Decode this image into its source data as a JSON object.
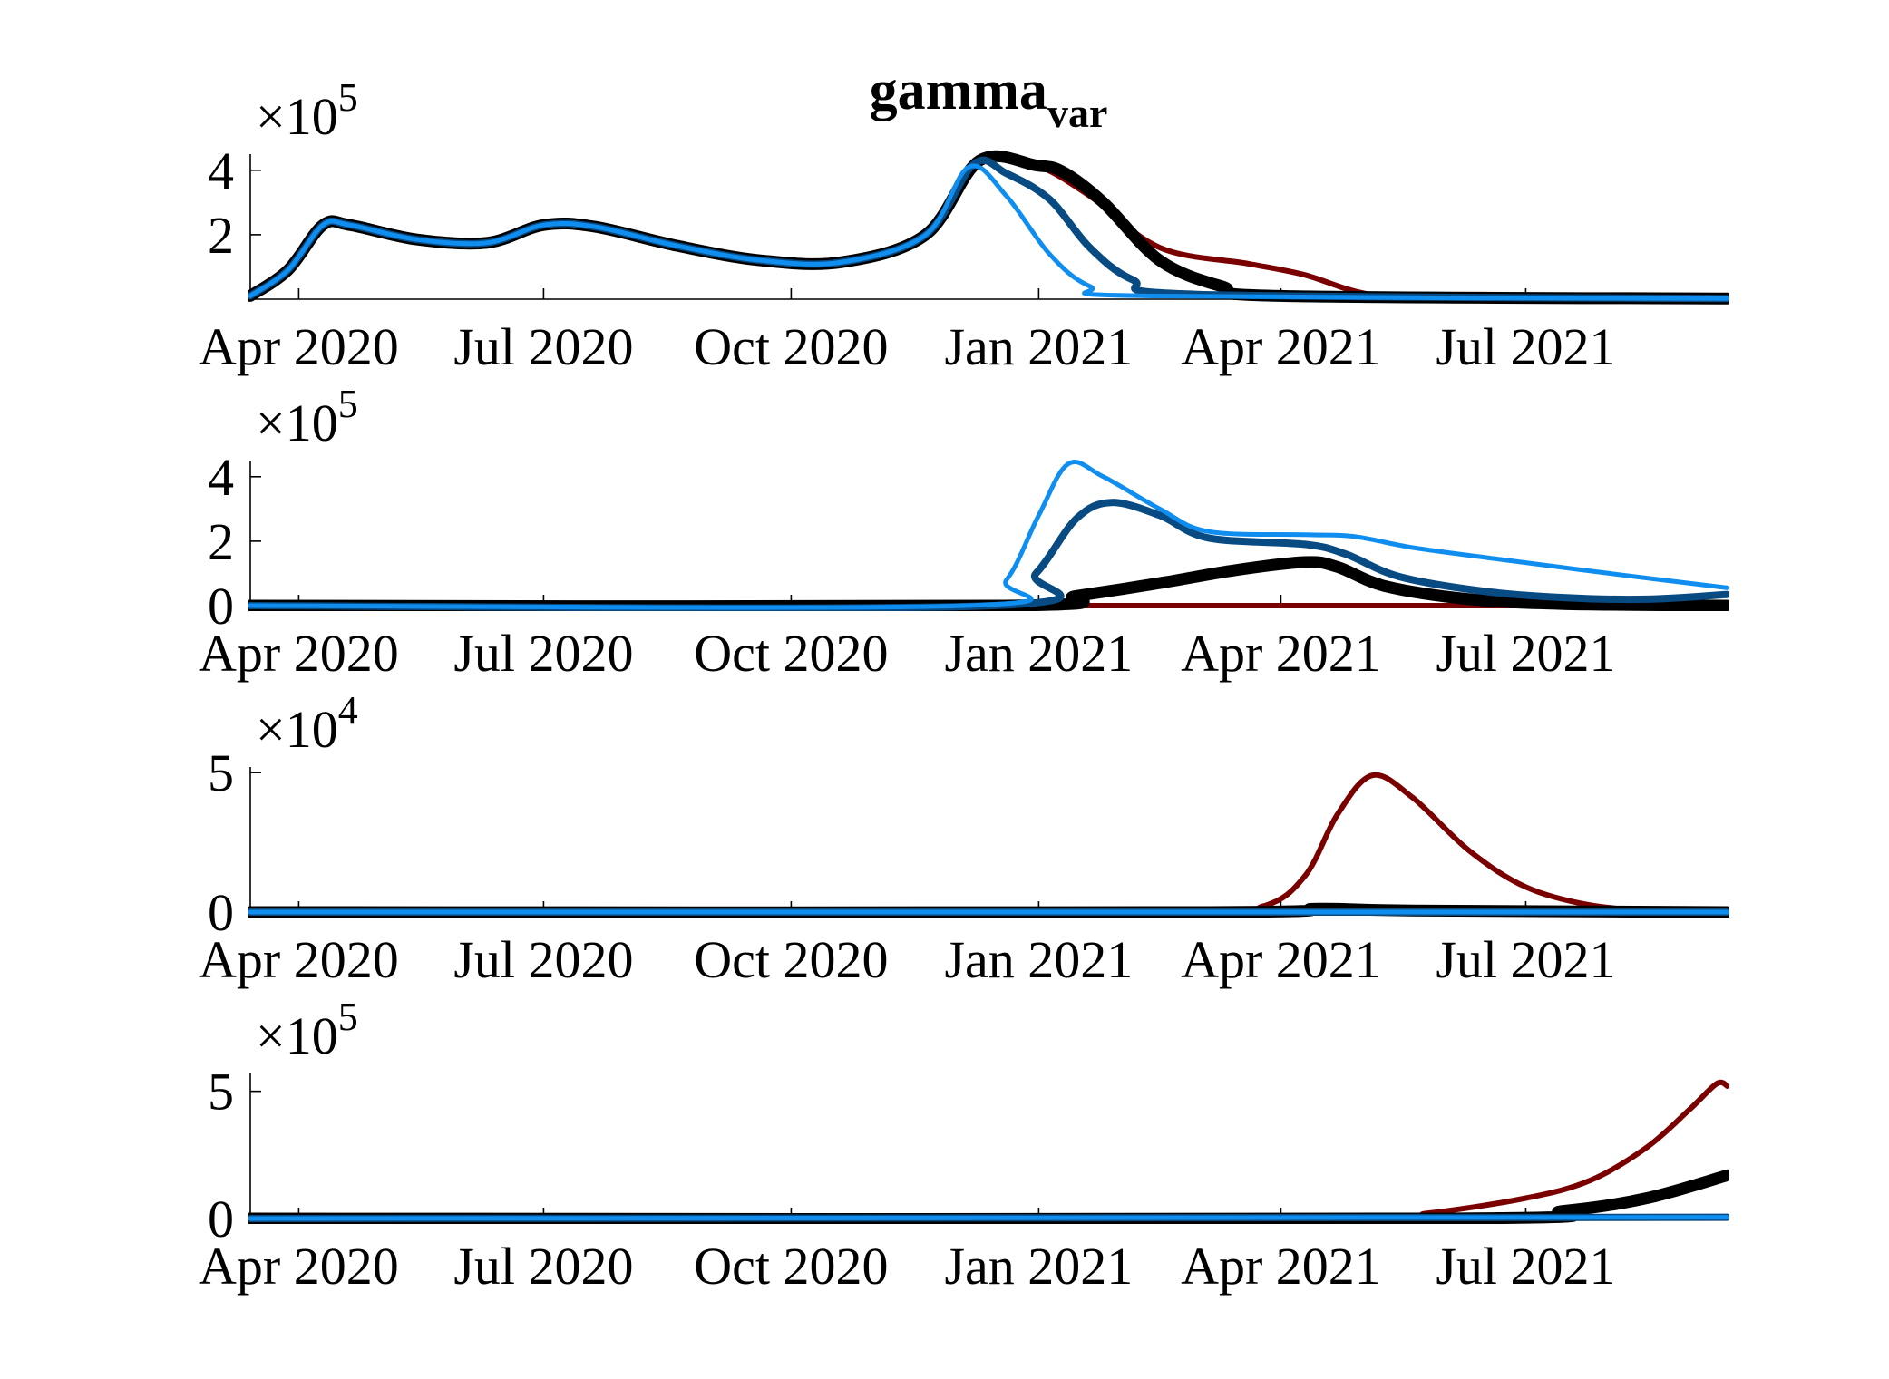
{
  "figure": {
    "title_main": "gamma",
    "title_sub": "var"
  },
  "x_ticks": [
    "Apr 2020",
    "Jul 2020",
    "Oct 2020",
    "Jan 2021",
    "Apr 2021",
    "Jul 2021"
  ],
  "chart_data": [
    {
      "type": "line",
      "panel": 1,
      "title": "gamma var",
      "xlabel": "",
      "ylabel": "",
      "x_ticks": [
        "2020-04-01",
        "2020-07-01",
        "2020-10-01",
        "2021-01-01",
        "2021-04-01",
        "2021-07-01"
      ],
      "xlim": [
        "2020-03-14",
        "2021-09-14"
      ],
      "ylim": [
        0,
        4.5
      ],
      "y_ticks": [
        "2",
        "4"
      ],
      "y_tick_values": [
        2,
        4
      ],
      "exponent_base": "×10",
      "exponent": "5",
      "grid": false,
      "series": [
        {
          "color": "#7a0000",
          "width": 6,
          "points": [
            [
              "2020-03-14",
              0.1
            ],
            [
              "2020-03-28",
              0.9
            ],
            [
              "2020-04-10",
              2.3
            ],
            [
              "2020-04-20",
              2.3
            ],
            [
              "2020-05-15",
              1.85
            ],
            [
              "2020-06-10",
              1.75
            ],
            [
              "2020-07-01",
              2.3
            ],
            [
              "2020-07-20",
              2.25
            ],
            [
              "2020-08-20",
              1.65
            ],
            [
              "2020-09-20",
              1.2
            ],
            [
              "2020-10-20",
              1.15
            ],
            [
              "2020-11-20",
              2.0
            ],
            [
              "2020-12-10",
              4.3
            ],
            [
              "2020-12-31",
              4.15
            ],
            [
              "2021-01-20",
              3.2
            ],
            [
              "2021-02-15",
              1.6
            ],
            [
              "2021-03-20",
              1.1
            ],
            [
              "2021-04-10",
              0.75
            ],
            [
              "2021-05-01",
              0.2
            ],
            [
              "2021-05-25",
              0.04
            ],
            [
              "2021-09-14",
              0.02
            ]
          ]
        },
        {
          "color": "#000000",
          "width": 13,
          "points": [
            [
              "2020-03-14",
              0.1
            ],
            [
              "2020-03-28",
              0.9
            ],
            [
              "2020-04-10",
              2.3
            ],
            [
              "2020-04-20",
              2.3
            ],
            [
              "2020-05-15",
              1.85
            ],
            [
              "2020-06-10",
              1.75
            ],
            [
              "2020-07-01",
              2.3
            ],
            [
              "2020-07-20",
              2.25
            ],
            [
              "2020-08-20",
              1.65
            ],
            [
              "2020-09-20",
              1.2
            ],
            [
              "2020-10-20",
              1.15
            ],
            [
              "2020-11-20",
              2.0
            ],
            [
              "2020-12-10",
              4.3
            ],
            [
              "2020-12-31",
              4.15
            ],
            [
              "2021-01-10",
              3.95
            ],
            [
              "2021-01-25",
              3.0
            ],
            [
              "2021-02-15",
              1.2
            ],
            [
              "2021-03-10",
              0.4
            ],
            [
              "2021-04-01",
              0.1
            ],
            [
              "2021-09-14",
              0.02
            ]
          ]
        },
        {
          "color": "#084a82",
          "width": 8,
          "points": [
            [
              "2020-03-14",
              0.1
            ],
            [
              "2020-03-28",
              0.9
            ],
            [
              "2020-04-10",
              2.3
            ],
            [
              "2020-04-20",
              2.3
            ],
            [
              "2020-05-15",
              1.85
            ],
            [
              "2020-06-10",
              1.75
            ],
            [
              "2020-07-01",
              2.3
            ],
            [
              "2020-07-20",
              2.25
            ],
            [
              "2020-08-20",
              1.65
            ],
            [
              "2020-09-20",
              1.2
            ],
            [
              "2020-10-20",
              1.15
            ],
            [
              "2020-11-20",
              2.0
            ],
            [
              "2020-12-08",
              4.2
            ],
            [
              "2020-12-20",
              3.9
            ],
            [
              "2021-01-05",
              3.1
            ],
            [
              "2021-01-20",
              1.6
            ],
            [
              "2021-02-05",
              0.6
            ],
            [
              "2021-03-01",
              0.15
            ],
            [
              "2021-09-14",
              0.02
            ]
          ]
        },
        {
          "color": "#0f8ef0",
          "width": 5,
          "points": [
            [
              "2020-03-14",
              0.1
            ],
            [
              "2020-03-28",
              0.9
            ],
            [
              "2020-04-10",
              2.3
            ],
            [
              "2020-04-20",
              2.3
            ],
            [
              "2020-05-15",
              1.85
            ],
            [
              "2020-06-10",
              1.75
            ],
            [
              "2020-07-01",
              2.3
            ],
            [
              "2020-07-20",
              2.25
            ],
            [
              "2020-08-20",
              1.65
            ],
            [
              "2020-09-20",
              1.2
            ],
            [
              "2020-10-20",
              1.15
            ],
            [
              "2020-11-20",
              2.0
            ],
            [
              "2020-12-06",
              4.1
            ],
            [
              "2020-12-20",
              3.2
            ],
            [
              "2021-01-05",
              1.4
            ],
            [
              "2021-01-20",
              0.4
            ],
            [
              "2021-02-10",
              0.1
            ],
            [
              "2021-09-14",
              0.02
            ]
          ]
        }
      ]
    },
    {
      "type": "line",
      "panel": 2,
      "xlabel": "",
      "ylabel": "",
      "x_ticks": [
        "2020-04-01",
        "2020-07-01",
        "2020-10-01",
        "2021-01-01",
        "2021-04-01",
        "2021-07-01"
      ],
      "xlim": [
        "2020-03-14",
        "2021-09-14"
      ],
      "ylim": [
        0,
        4.5
      ],
      "y_ticks": [
        "0",
        "2",
        "4"
      ],
      "y_tick_values": [
        0,
        2,
        4
      ],
      "exponent_base": "×10",
      "exponent": "5",
      "grid": false,
      "series": [
        {
          "color": "#7a0000",
          "width": 6,
          "points": [
            [
              "2020-03-14",
              0
            ],
            [
              "2021-09-14",
              0
            ]
          ]
        },
        {
          "color": "#000000",
          "width": 13,
          "points": [
            [
              "2020-03-14",
              0
            ],
            [
              "2020-12-20",
              0
            ],
            [
              "2021-01-15",
              0.3
            ],
            [
              "2021-02-15",
              0.7
            ],
            [
              "2021-03-15",
              1.1
            ],
            [
              "2021-04-10",
              1.35
            ],
            [
              "2021-04-22",
              1.2
            ],
            [
              "2021-05-10",
              0.6
            ],
            [
              "2021-06-10",
              0.2
            ],
            [
              "2021-07-15",
              0.05
            ],
            [
              "2021-09-14",
              0.0
            ]
          ]
        },
        {
          "color": "#084a82",
          "width": 8,
          "points": [
            [
              "2020-03-14",
              0
            ],
            [
              "2020-12-15",
              0
            ],
            [
              "2020-12-31",
              1.0
            ],
            [
              "2021-01-15",
              2.7
            ],
            [
              "2021-01-28",
              3.2
            ],
            [
              "2021-02-15",
              2.8
            ],
            [
              "2021-03-05",
              2.1
            ],
            [
              "2021-04-10",
              1.9
            ],
            [
              "2021-04-25",
              1.6
            ],
            [
              "2021-05-15",
              0.9
            ],
            [
              "2021-06-15",
              0.45
            ],
            [
              "2021-07-15",
              0.25
            ],
            [
              "2021-08-15",
              0.2
            ],
            [
              "2021-09-14",
              0.35
            ]
          ]
        },
        {
          "color": "#0f8ef0",
          "width": 5,
          "points": [
            [
              "2020-03-14",
              0
            ],
            [
              "2020-12-05",
              0
            ],
            [
              "2020-12-20",
              0.8
            ],
            [
              "2021-01-01",
              2.8
            ],
            [
              "2021-01-12",
              4.4
            ],
            [
              "2021-01-25",
              4.0
            ],
            [
              "2021-02-15",
              3.0
            ],
            [
              "2021-03-05",
              2.3
            ],
            [
              "2021-04-10",
              2.2
            ],
            [
              "2021-04-28",
              2.15
            ],
            [
              "2021-05-20",
              1.8
            ],
            [
              "2021-06-20",
              1.45
            ],
            [
              "2021-08-01",
              1.0
            ],
            [
              "2021-09-14",
              0.55
            ]
          ]
        }
      ]
    },
    {
      "type": "line",
      "panel": 3,
      "xlabel": "",
      "ylabel": "",
      "x_ticks": [
        "2020-04-01",
        "2020-07-01",
        "2020-10-01",
        "2021-01-01",
        "2021-04-01",
        "2021-07-01"
      ],
      "xlim": [
        "2020-03-14",
        "2021-09-14"
      ],
      "ylim": [
        0,
        5.2
      ],
      "y_ticks": [
        "0",
        "5"
      ],
      "y_tick_values": [
        0,
        5
      ],
      "exponent_base": "×10",
      "exponent": "4",
      "grid": false,
      "series": [
        {
          "color": "#7a0000",
          "width": 6,
          "points": [
            [
              "2020-03-14",
              0
            ],
            [
              "2021-02-20",
              0
            ],
            [
              "2021-03-25",
              0.2
            ],
            [
              "2021-04-10",
              1.3
            ],
            [
              "2021-04-22",
              3.5
            ],
            [
              "2021-05-05",
              4.9
            ],
            [
              "2021-05-20",
              4.1
            ],
            [
              "2021-06-10",
              2.2
            ],
            [
              "2021-07-01",
              0.9
            ],
            [
              "2021-07-25",
              0.25
            ],
            [
              "2021-08-20",
              0.05
            ],
            [
              "2021-09-14",
              0
            ]
          ]
        },
        {
          "color": "#000000",
          "width": 13,
          "points": [
            [
              "2020-03-14",
              0
            ],
            [
              "2021-03-01",
              0
            ],
            [
              "2021-04-15",
              0.12
            ],
            [
              "2021-05-20",
              0.06
            ],
            [
              "2021-09-14",
              0
            ]
          ]
        },
        {
          "color": "#084a82",
          "width": 8,
          "points": [
            [
              "2020-03-14",
              0
            ],
            [
              "2021-09-14",
              0
            ]
          ]
        },
        {
          "color": "#0f8ef0",
          "width": 5,
          "points": [
            [
              "2020-03-14",
              0
            ],
            [
              "2021-09-14",
              0
            ]
          ]
        }
      ]
    },
    {
      "type": "line",
      "panel": 4,
      "xlabel": "",
      "ylabel": "",
      "x_ticks": [
        "2020-04-01",
        "2020-07-01",
        "2020-10-01",
        "2021-01-01",
        "2021-04-01",
        "2021-07-01"
      ],
      "xlim": [
        "2020-03-14",
        "2021-09-14"
      ],
      "ylim": [
        0,
        5.7
      ],
      "y_ticks": [
        "0",
        "5"
      ],
      "y_tick_values": [
        0,
        5
      ],
      "exponent_base": "×10",
      "exponent": "5",
      "grid": false,
      "series": [
        {
          "color": "#7a0000",
          "width": 6,
          "points": [
            [
              "2020-03-14",
              0
            ],
            [
              "2021-04-25",
              0
            ],
            [
              "2021-05-25",
              0.2
            ],
            [
              "2021-07-01",
              0.8
            ],
            [
              "2021-07-25",
              1.5
            ],
            [
              "2021-08-15",
              2.8
            ],
            [
              "2021-08-31",
              4.3
            ],
            [
              "2021-09-10",
              5.3
            ],
            [
              "2021-09-14",
              5.2
            ]
          ]
        },
        {
          "color": "#000000",
          "width": 13,
          "points": [
            [
              "2020-03-14",
              0
            ],
            [
              "2021-06-01",
              0
            ],
            [
              "2021-07-15",
              0.3
            ],
            [
              "2021-08-15",
              0.8
            ],
            [
              "2021-09-14",
              1.7
            ]
          ]
        },
        {
          "color": "#084a82",
          "width": 8,
          "points": [
            [
              "2020-03-14",
              0
            ],
            [
              "2021-09-14",
              0.05
            ]
          ]
        },
        {
          "color": "#0f8ef0",
          "width": 5,
          "points": [
            [
              "2020-03-14",
              0
            ],
            [
              "2021-09-14",
              0.05
            ]
          ]
        }
      ]
    }
  ]
}
